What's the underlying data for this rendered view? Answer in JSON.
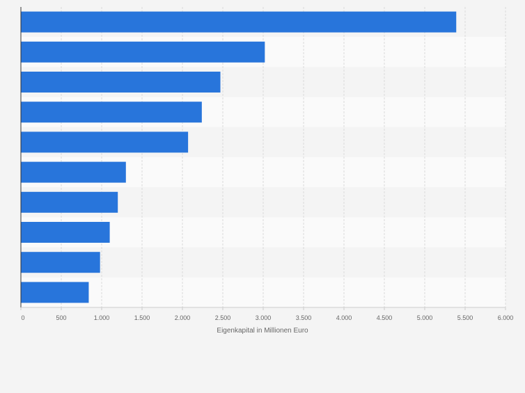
{
  "chart_data": {
    "type": "bar",
    "orientation": "horizontal",
    "categories": [
      "",
      "",
      "",
      "",
      "",
      "",
      "",
      "",
      "",
      ""
    ],
    "values": [
      5390,
      3020,
      2470,
      2240,
      2070,
      1300,
      1200,
      1100,
      980,
      840
    ],
    "xlabel": "Eigenkapital in Millionen Euro",
    "ylabel": "",
    "xlim": [
      0,
      6000
    ],
    "xticks": [
      0,
      500,
      1000,
      1500,
      2000,
      2500,
      3000,
      3500,
      4000,
      4500,
      5000,
      5500,
      6000
    ],
    "xtick_labels": [
      "0",
      "500",
      "1.000",
      "1.500",
      "2.000",
      "2.500",
      "3.000",
      "3.500",
      "4.000",
      "4.500",
      "5.000",
      "5.500",
      "6.000"
    ],
    "grid": true,
    "legend": "none",
    "bar_color": "#2875db",
    "band_colors": [
      "#f4f4f4",
      "#fafafa"
    ]
  }
}
